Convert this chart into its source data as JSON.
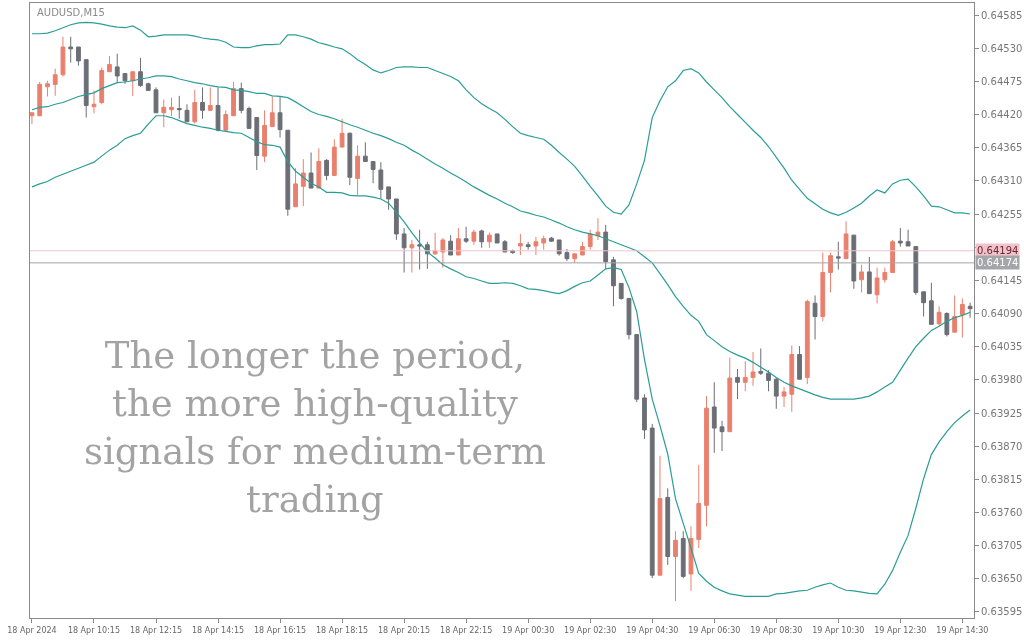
{
  "chart_data": {
    "type": "candlestick",
    "title": "AUDUSD,M15",
    "annotations": [
      "The longer the period,\nthe more high-quality\nsignals for medium-term\ntrading"
    ],
    "categories": [
      "18 Apr 2024",
      null,
      null,
      null,
      null,
      null,
      null,
      null,
      "18 Apr 10:15",
      null,
      null,
      null,
      null,
      null,
      null,
      null,
      "18 Apr 12:15",
      null,
      null,
      null,
      null,
      null,
      null,
      null,
      "18 Apr 14:15",
      null,
      null,
      null,
      null,
      null,
      null,
      null,
      "18 Apr 16:15",
      null,
      null,
      null,
      null,
      null,
      null,
      null,
      "18 Apr 18:15",
      null,
      null,
      null,
      null,
      null,
      null,
      null,
      "18 Apr 20:15",
      null,
      null,
      null,
      null,
      null,
      null,
      null,
      "18 Apr 22:15",
      null,
      null,
      null,
      null,
      null,
      null,
      null,
      "19 Apr 00:30",
      null,
      null,
      null,
      null,
      null,
      null,
      null,
      "19 Apr 02:30",
      null,
      null,
      null,
      null,
      null,
      null,
      null,
      "19 Apr 04:30",
      null,
      null,
      null,
      null,
      null,
      null,
      null,
      "19 Apr 06:30",
      null,
      null,
      null,
      null,
      null,
      null,
      null,
      "19 Apr 08:30",
      null,
      null,
      null,
      null,
      null,
      null,
      null,
      "19 Apr 10:30",
      null,
      null,
      null,
      null,
      null,
      null,
      null,
      "19 Apr 12:30",
      null,
      null,
      null,
      null,
      null,
      null,
      null,
      "19 Apr 14:30",
      null
    ],
    "ohlc": [
      [
        0.64418,
        0.64423,
        0.64404,
        0.64423
      ],
      [
        0.64418,
        0.64474,
        0.64418,
        0.6447
      ],
      [
        0.64466,
        0.64476,
        0.6445,
        0.64471
      ],
      [
        0.6447,
        0.64496,
        0.64451,
        0.64486
      ],
      [
        0.64486,
        0.64549,
        0.64483,
        0.64532
      ],
      [
        0.64532,
        0.64549,
        0.64506,
        0.64529
      ],
      [
        0.64532,
        0.64532,
        0.64501,
        0.64509
      ],
      [
        0.64511,
        0.64511,
        0.64415,
        0.64435
      ],
      [
        0.64433,
        0.6446,
        0.64422,
        0.64437
      ],
      [
        0.6444,
        0.64498,
        0.64437,
        0.64493
      ],
      [
        0.64491,
        0.64517,
        0.64491,
        0.64503
      ],
      [
        0.64499,
        0.64521,
        0.64473,
        0.64484
      ],
      [
        0.64488,
        0.64488,
        0.64471,
        0.64476
      ],
      [
        0.64476,
        0.64491,
        0.64451,
        0.64491
      ],
      [
        0.64491,
        0.64514,
        0.64466,
        0.64468
      ],
      [
        0.64471,
        0.64473,
        0.6446,
        0.6446
      ],
      [
        0.64461,
        0.64465,
        0.64423,
        0.64423
      ],
      [
        0.64423,
        0.64445,
        0.64399,
        0.64432
      ],
      [
        0.64428,
        0.64448,
        0.64418,
        0.64432
      ],
      [
        0.6443,
        0.64451,
        0.64413,
        0.64428
      ],
      [
        0.64427,
        0.64437,
        0.64408,
        0.64408
      ],
      [
        0.64408,
        0.64461,
        0.64405,
        0.6444
      ],
      [
        0.6444,
        0.64465,
        0.64413,
        0.64427
      ],
      [
        0.64427,
        0.64465,
        0.64427,
        0.64435
      ],
      [
        0.64435,
        0.64465,
        0.64392,
        0.64394
      ],
      [
        0.64394,
        0.64427,
        0.64394,
        0.6442
      ],
      [
        0.64418,
        0.64474,
        0.64418,
        0.64463
      ],
      [
        0.64463,
        0.64473,
        0.64422,
        0.64427
      ],
      [
        0.6443,
        0.64433,
        0.64397,
        0.64397
      ],
      [
        0.64415,
        0.64415,
        0.64328,
        0.64352
      ],
      [
        0.64351,
        0.64427,
        0.64341,
        0.64402
      ],
      [
        0.644,
        0.6445,
        0.644,
        0.64423
      ],
      [
        0.64423,
        0.6445,
        0.64382,
        0.64395
      ],
      [
        0.64394,
        0.64394,
        0.64252,
        0.64263
      ],
      [
        0.64267,
        0.64331,
        0.64267,
        0.64305
      ],
      [
        0.64301,
        0.64346,
        0.64268,
        0.64323
      ],
      [
        0.64323,
        0.64357,
        0.64298,
        0.64298
      ],
      [
        0.64298,
        0.64364,
        0.64298,
        0.64342
      ],
      [
        0.64344,
        0.64346,
        0.64311,
        0.64319
      ],
      [
        0.64319,
        0.64379,
        0.64319,
        0.64366
      ],
      [
        0.64366,
        0.64413,
        0.64366,
        0.64389
      ],
      [
        0.64389,
        0.6439,
        0.64303,
        0.64316
      ],
      [
        0.64314,
        0.64369,
        0.64286,
        0.64351
      ],
      [
        0.64351,
        0.64374,
        0.64342,
        0.64342
      ],
      [
        0.64342,
        0.64342,
        0.64306,
        0.64329
      ],
      [
        0.64328,
        0.64341,
        0.6428,
        0.64296
      ],
      [
        0.643,
        0.643,
        0.64262,
        0.6428
      ],
      [
        0.6428,
        0.6428,
        0.64212,
        0.64222
      ],
      [
        0.64222,
        0.64232,
        0.64158,
        0.64199
      ],
      [
        0.64199,
        0.64212,
        0.64158,
        0.64204
      ],
      [
        0.64204,
        0.64229,
        0.64163,
        0.64202
      ],
      [
        0.64204,
        0.64209,
        0.64164,
        0.64189
      ],
      [
        0.64189,
        0.64224,
        0.64187,
        0.64194
      ],
      [
        0.64192,
        0.64215,
        0.64166,
        0.64212
      ],
      [
        0.6421,
        0.6422,
        0.64187,
        0.64187
      ],
      [
        0.64187,
        0.64232,
        0.64187,
        0.64214
      ],
      [
        0.64214,
        0.64234,
        0.64207,
        0.6421
      ],
      [
        0.6421,
        0.64229,
        0.64204,
        0.64225
      ],
      [
        0.64227,
        0.64229,
        0.64199,
        0.64209
      ],
      [
        0.64209,
        0.64224,
        0.64199,
        0.6422
      ],
      [
        0.64222,
        0.64222,
        0.64207,
        0.64207
      ],
      [
        0.64209,
        0.64212,
        0.64192,
        0.64192
      ],
      [
        0.64194,
        0.64196,
        0.64189,
        0.64191
      ],
      [
        0.64202,
        0.64222,
        0.64187,
        0.64206
      ],
      [
        0.64204,
        0.64209,
        0.64196,
        0.64201
      ],
      [
        0.64202,
        0.64217,
        0.64187,
        0.64209
      ],
      [
        0.64207,
        0.64219,
        0.64196,
        0.64214
      ],
      [
        0.64215,
        0.64217,
        0.64209,
        0.6421
      ],
      [
        0.64212,
        0.64212,
        0.64186,
        0.64189
      ],
      [
        0.64191,
        0.64197,
        0.64177,
        0.64181
      ],
      [
        0.64181,
        0.64189,
        0.64174,
        0.64189
      ],
      [
        0.64187,
        0.64209,
        0.64187,
        0.64201
      ],
      [
        0.64201,
        0.64229,
        0.64196,
        0.64222
      ],
      [
        0.64219,
        0.64248,
        0.64212,
        0.64225
      ],
      [
        0.64225,
        0.64237,
        0.64164,
        0.64176
      ],
      [
        0.64179,
        0.64184,
        0.64102,
        0.64136
      ],
      [
        0.6414,
        0.6414,
        0.64113,
        0.64115
      ],
      [
        0.64115,
        0.64115,
        0.64047,
        0.64055
      ],
      [
        0.64055,
        0.64055,
        0.63943,
        0.63948
      ],
      [
        0.6395,
        0.63956,
        0.63882,
        0.63897
      ],
      [
        0.639,
        0.63907,
        0.63651,
        0.63656
      ],
      [
        0.63656,
        0.63854,
        0.63656,
        0.63783
      ],
      [
        0.63785,
        0.638,
        0.63673,
        0.63687
      ],
      [
        0.63687,
        0.63729,
        0.63613,
        0.63714
      ],
      [
        0.63717,
        0.63729,
        0.63651,
        0.63654
      ],
      [
        0.63658,
        0.63737,
        0.6363,
        0.63717
      ],
      [
        0.63715,
        0.63839,
        0.63701,
        0.63775
      ],
      [
        0.63772,
        0.63953,
        0.63737,
        0.63933
      ],
      [
        0.63935,
        0.63976,
        0.63859,
        0.639
      ],
      [
        0.63902,
        0.63912,
        0.63862,
        0.63894
      ],
      [
        0.63894,
        0.64017,
        0.63894,
        0.63983
      ],
      [
        0.63984,
        0.63998,
        0.63948,
        0.63976
      ],
      [
        0.63976,
        0.64011,
        0.63961,
        0.63984
      ],
      [
        0.63984,
        0.64026,
        0.6397,
        0.63993
      ],
      [
        0.63994,
        0.64032,
        0.63988,
        0.63991
      ],
      [
        0.63991,
        0.63996,
        0.63961,
        0.63979
      ],
      [
        0.63981,
        0.63984,
        0.63932,
        0.63953
      ],
      [
        0.63953,
        0.63968,
        0.63935,
        0.6396
      ],
      [
        0.63956,
        0.64037,
        0.63927,
        0.64022
      ],
      [
        0.64022,
        0.64036,
        0.63981,
        0.63981
      ],
      [
        0.63984,
        0.64113,
        0.63973,
        0.6411
      ],
      [
        0.64107,
        0.6412,
        0.64047,
        0.64085
      ],
      [
        0.64085,
        0.64191,
        0.64077,
        0.64158
      ],
      [
        0.64158,
        0.64191,
        0.64125,
        0.64186
      ],
      [
        0.64184,
        0.64209,
        0.64163,
        0.64182
      ],
      [
        0.64181,
        0.64243,
        0.64181,
        0.64222
      ],
      [
        0.6422,
        0.6422,
        0.64131,
        0.64144
      ],
      [
        0.64146,
        0.64171,
        0.64125,
        0.64159
      ],
      [
        0.64159,
        0.64184,
        0.64123,
        0.64123
      ],
      [
        0.64121,
        0.64166,
        0.64107,
        0.64149
      ],
      [
        0.64146,
        0.64166,
        0.64141,
        0.64158
      ],
      [
        0.64158,
        0.64212,
        0.64158,
        0.64209
      ],
      [
        0.6421,
        0.64232,
        0.64201,
        0.64207
      ],
      [
        0.64209,
        0.64229,
        0.64202,
        0.64202
      ],
      [
        0.64201,
        0.64201,
        0.64121,
        0.64125
      ],
      [
        0.64126,
        0.64126,
        0.64085,
        0.64108
      ],
      [
        0.64111,
        0.64141,
        0.64072,
        0.64072
      ],
      [
        0.64073,
        0.64102,
        0.6407,
        0.64092
      ],
      [
        0.6409,
        0.64092,
        0.64052,
        0.64055
      ],
      [
        0.64059,
        0.6412,
        0.64059,
        0.64085
      ],
      [
        0.64088,
        0.64115,
        0.6405,
        0.64105
      ],
      [
        0.64102,
        0.64108,
        0.64083,
        0.64098
      ]
    ],
    "colors": [
      "#e9806e",
      "#e9806e",
      "#e9806e",
      "#e9806e",
      "#e9806e",
      "#6b6e75",
      "#6b6e75",
      "#6b6e75",
      "#e9806e",
      "#e9806e",
      "#e9806e",
      "#6b6e75",
      "#6b6e75",
      "#e9806e",
      "#6b6e75",
      "#6b6e75",
      "#6b6e75",
      "#e9806e",
      "#e9806e",
      "#6b6e75",
      "#6b6e75",
      "#e9806e",
      "#6b6e75",
      "#e9806e",
      "#6b6e75",
      "#e9806e",
      "#e9806e",
      "#6b6e75",
      "#6b6e75",
      "#6b6e75",
      "#e9806e",
      "#e9806e",
      "#6b6e75",
      "#6b6e75",
      "#e9806e",
      "#e9806e",
      "#6b6e75",
      "#e9806e",
      "#6b6e75",
      "#e9806e",
      "#e9806e",
      "#6b6e75",
      "#e9806e",
      "#6b6e75",
      "#6b6e75",
      "#6b6e75",
      "#6b6e75",
      "#6b6e75",
      "#6b6e75",
      "#e9806e",
      "#6b6e75",
      "#6b6e75",
      "#e9806e",
      "#e9806e",
      "#6b6e75",
      "#e9806e",
      "#6b6e75",
      "#e9806e",
      "#6b6e75",
      "#e9806e",
      "#6b6e75",
      "#6b6e75",
      "#6b6e75",
      "#e9806e",
      "#6b6e75",
      "#e9806e",
      "#e9806e",
      "#6b6e75",
      "#6b6e75",
      "#6b6e75",
      "#e9806e",
      "#e9806e",
      "#e9806e",
      "#e9806e",
      "#6b6e75",
      "#6b6e75",
      "#6b6e75",
      "#6b6e75",
      "#6b6e75",
      "#6b6e75",
      "#6b6e75",
      "#e9806e",
      "#6b6e75",
      "#e9806e",
      "#6b6e75",
      "#e9806e",
      "#e9806e",
      "#e9806e",
      "#6b6e75",
      "#6b6e75",
      "#e9806e",
      "#6b6e75",
      "#e9806e",
      "#e9806e",
      "#6b6e75",
      "#6b6e75",
      "#6b6e75",
      "#e9806e",
      "#e9806e",
      "#6b6e75",
      "#e9806e",
      "#6b6e75",
      "#e9806e",
      "#e9806e",
      "#6b6e75",
      "#e9806e",
      "#6b6e75",
      "#e9806e",
      "#6b6e75",
      "#e9806e",
      "#e9806e",
      "#e9806e",
      "#6b6e75",
      "#6b6e75",
      "#6b6e75",
      "#6b6e75",
      "#6b6e75",
      "#e9806e",
      "#6b6e75",
      "#e9806e",
      "#e9806e",
      "#6b6e75"
    ],
    "series": [
      {
        "type": "line",
        "color": "#2a9d98",
        "values": [
          0.64554,
          0.64554,
          0.64555,
          0.64559,
          0.64564,
          0.64569,
          0.64572,
          0.64573,
          0.64572,
          0.6457,
          0.64567,
          0.64565,
          0.64564,
          0.64567,
          0.6456,
          0.64549,
          0.6455,
          0.64552,
          0.64552,
          0.64552,
          0.64552,
          0.6455,
          0.64547,
          0.64545,
          0.64544,
          0.6454,
          0.64532,
          0.64531,
          0.64531,
          0.64534,
          0.64536,
          0.64536,
          0.64537,
          0.64552,
          0.64552,
          0.64549,
          0.64545,
          0.64539,
          0.64536,
          0.64532,
          0.64529,
          0.64521,
          0.64511,
          0.64503,
          0.64494,
          0.64489,
          0.64493,
          0.64498,
          0.64499,
          0.64499,
          0.64498,
          0.64498,
          0.64493,
          0.64488,
          0.64483,
          0.64476,
          0.64461,
          0.64448,
          0.64438,
          0.6443,
          0.64423,
          0.64412,
          0.644,
          0.64389,
          0.64385,
          0.64382,
          0.64379,
          0.64369,
          0.64357,
          0.64346,
          0.64334,
          0.64318,
          0.64301,
          0.64285,
          0.64268,
          0.64258,
          0.64255,
          0.6427,
          0.64305,
          0.64344,
          0.64415,
          0.64443,
          0.64466,
          0.64476,
          0.64493,
          0.64496,
          0.64489,
          0.64474,
          0.64461,
          0.64448,
          0.64433,
          0.6442,
          0.64407,
          0.64394,
          0.64382,
          0.64367,
          0.64349,
          0.64331,
          0.64311,
          0.64296,
          0.64281,
          0.64272,
          0.64263,
          0.64257,
          0.64253,
          0.64258,
          0.64265,
          0.64273,
          0.64285,
          0.64295,
          0.6429,
          0.64305,
          0.64311,
          0.64313,
          0.643,
          0.64285,
          0.64268,
          0.64267,
          0.64262,
          0.64257,
          0.64257,
          0.64255
        ]
      },
      {
        "type": "line",
        "color": "#2a9d98",
        "values": [
          0.64428,
          0.64432,
          0.64433,
          0.64437,
          0.6444,
          0.64445,
          0.6445,
          0.64453,
          0.64456,
          0.64463,
          0.64468,
          0.64473,
          0.64474,
          0.64476,
          0.64479,
          0.64481,
          0.64484,
          0.64484,
          0.64483,
          0.64479,
          0.64476,
          0.64473,
          0.64471,
          0.64468,
          0.64466,
          0.64465,
          0.64461,
          0.6446,
          0.64458,
          0.64455,
          0.64455,
          0.64451,
          0.6445,
          0.64448,
          0.64441,
          0.64433,
          0.64425,
          0.6442,
          0.64417,
          0.64413,
          0.64408,
          0.64403,
          0.64399,
          0.64394,
          0.64389,
          0.64385,
          0.6438,
          0.64374,
          0.64369,
          0.64361,
          0.64354,
          0.64346,
          0.64338,
          0.64331,
          0.64323,
          0.64316,
          0.64308,
          0.643,
          0.64293,
          0.64286,
          0.6428,
          0.64273,
          0.64267,
          0.6426,
          0.64257,
          0.64253,
          0.6425,
          0.64245,
          0.6424,
          0.64234,
          0.64229,
          0.64225,
          0.64222,
          0.64219,
          0.64214,
          0.64209,
          0.64204,
          0.64199,
          0.64194,
          0.64184,
          0.64174,
          0.64156,
          0.64138,
          0.64118,
          0.64102,
          0.64087,
          0.64077,
          0.64055,
          0.64045,
          0.64035,
          0.64027,
          0.64021,
          0.64016,
          0.64009,
          0.64001,
          0.63993,
          0.63984,
          0.63976,
          0.6397,
          0.63965,
          0.6396,
          0.63955,
          0.63951,
          0.63948,
          0.63948,
          0.63948,
          0.63948,
          0.6395,
          0.63953,
          0.6396,
          0.63968,
          0.63976,
          0.63996,
          0.64016,
          0.64035,
          0.64049,
          0.64062,
          0.64069,
          0.64077,
          0.64083,
          0.64087,
          0.64092
        ]
      },
      {
        "type": "line",
        "color": "#2a9d98",
        "values": [
          0.643,
          0.64305,
          0.64309,
          0.64316,
          0.64321,
          0.64326,
          0.64331,
          0.64336,
          0.64341,
          0.64351,
          0.64361,
          0.64369,
          0.6438,
          0.64385,
          0.64389,
          0.64404,
          0.64418,
          0.64418,
          0.64415,
          0.6441,
          0.64405,
          0.64402,
          0.64399,
          0.64397,
          0.64394,
          0.64392,
          0.6439,
          0.64389,
          0.64382,
          0.64375,
          0.6437,
          0.64369,
          0.64366,
          0.64342,
          0.64326,
          0.64316,
          0.64306,
          0.643,
          0.64291,
          0.64291,
          0.6429,
          0.64286,
          0.64285,
          0.64285,
          0.64283,
          0.6428,
          0.64273,
          0.64258,
          0.64242,
          0.64224,
          0.64207,
          0.64192,
          0.64182,
          0.64171,
          0.64164,
          0.64158,
          0.64151,
          0.64148,
          0.64144,
          0.6414,
          0.6414,
          0.64141,
          0.6414,
          0.64136,
          0.64131,
          0.6413,
          0.64128,
          0.64125,
          0.64123,
          0.64128,
          0.64135,
          0.64141,
          0.64144,
          0.64154,
          0.64164,
          0.64166,
          0.64163,
          0.64133,
          0.64093,
          0.64014,
          0.63948,
          0.63904,
          0.63857,
          0.63783,
          0.63742,
          0.63701,
          0.63659,
          0.63646,
          0.63636,
          0.6363,
          0.63625,
          0.63623,
          0.63621,
          0.63621,
          0.63621,
          0.63621,
          0.63625,
          0.63626,
          0.63628,
          0.6363,
          0.63631,
          0.63636,
          0.6364,
          0.63643,
          0.63636,
          0.63631,
          0.6363,
          0.63628,
          0.63626,
          0.63625,
          0.63641,
          0.63664,
          0.63694,
          0.63722,
          0.63767,
          0.63816,
          0.63856,
          0.63877,
          0.63894,
          0.63909,
          0.6392,
          0.6393
        ]
      }
    ],
    "ylim": [
      0.63585,
      0.64605
    ],
    "yticks": [
      0.63595,
      {
        "value": 0.6365,
        "label": "0.63650"
      },
      0.63705,
      {
        "value": 0.6376,
        "label": "0.63760"
      },
      0.63815,
      {
        "value": 0.6387,
        "label": "0.63870"
      },
      0.63925,
      {
        "value": 0.6398,
        "label": "0.63980"
      },
      0.64035,
      {
        "value": 0.6409,
        "label": "0.64090"
      },
      0.64145,
      {
        "value": 0.642,
        "label": null
      },
      0.64255,
      {
        "value": 0.6431,
        "label": "0.64310"
      },
      0.64365,
      {
        "value": 0.6442,
        "label": "0.64420"
      },
      0.64475,
      {
        "value": 0.6453,
        "label": "0.64530"
      },
      0.64585
    ],
    "ref_lines": [
      {
        "axis": "y",
        "value": 0.64194,
        "label": "0.64194",
        "color": "#efc3c9"
      },
      {
        "axis": "y",
        "value": 0.64174,
        "label": "0.64174",
        "color": "#a3a5a8"
      }
    ]
  }
}
